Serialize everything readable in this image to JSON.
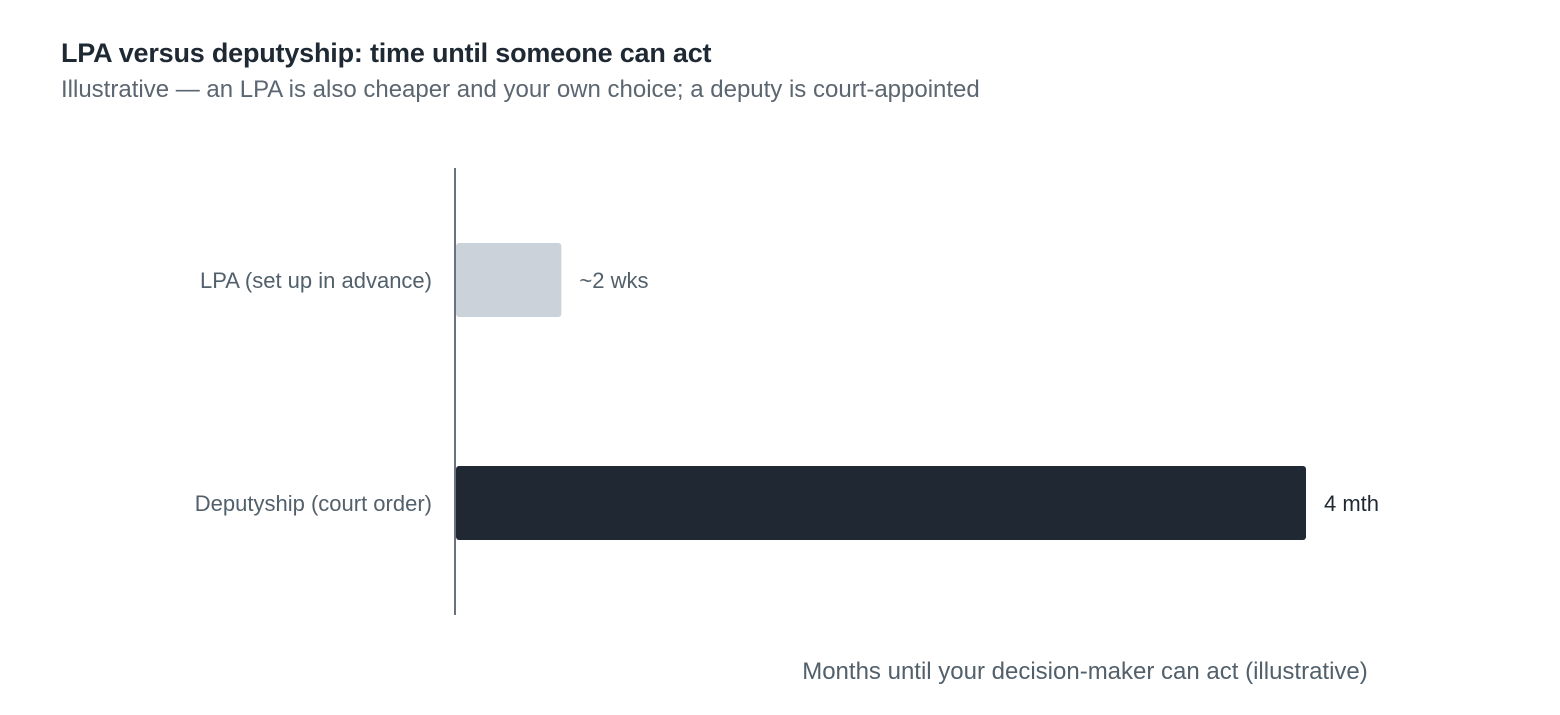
{
  "chart_data": {
    "type": "bar",
    "orientation": "horizontal",
    "title": "LPA versus deputyship: time until someone can act",
    "subtitle": "Illustrative — an LPA is also cheaper and your own choice; a deputy is court-appointed",
    "xlabel": "Months until your decision-maker can act (illustrative)",
    "ylabel": "",
    "xlim": [
      0,
      4.2
    ],
    "grid": false,
    "categories": [
      "LPA (set up in advance)",
      "Deputyship (court order)"
    ],
    "values": [
      0.5,
      4
    ],
    "value_labels": [
      "~2 wks",
      "4 mth"
    ],
    "bar_colors": [
      "#cbd2d9",
      "#202933"
    ],
    "value_label_colors": [
      "#52606b",
      "#1f2933"
    ]
  }
}
